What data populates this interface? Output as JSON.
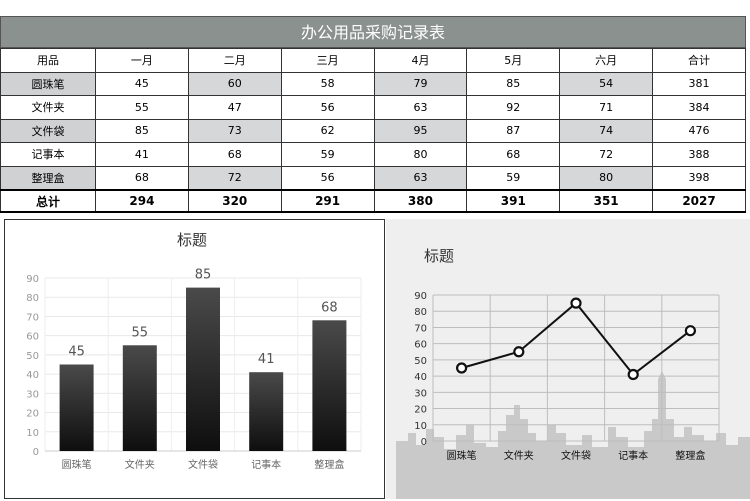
{
  "table": {
    "title": "办公用品采购记录表",
    "headers": [
      "用品",
      "一月",
      "二月",
      "三月",
      "4月",
      "5月",
      "六月",
      "合计"
    ],
    "rows": [
      {
        "name": "圆珠笔",
        "values": [
          "45",
          "60",
          "58",
          "79",
          "85",
          "54"
        ],
        "total": "381"
      },
      {
        "name": "文件夹",
        "values": [
          "55",
          "47",
          "56",
          "63",
          "92",
          "71"
        ],
        "total": "384"
      },
      {
        "name": "文件袋",
        "values": [
          "85",
          "73",
          "62",
          "95",
          "87",
          "74"
        ],
        "total": "476"
      },
      {
        "name": "记事本",
        "values": [
          "41",
          "68",
          "59",
          "80",
          "68",
          "72"
        ],
        "total": "388"
      },
      {
        "name": "整理盒",
        "values": [
          "68",
          "72",
          "56",
          "63",
          "59",
          "80"
        ],
        "total": "398"
      }
    ],
    "total_row": {
      "label": "总计",
      "values": [
        "294",
        "320",
        "291",
        "380",
        "391",
        "351"
      ],
      "total": "2027"
    }
  },
  "chart_data": [
    {
      "type": "bar",
      "title": "标题",
      "categories": [
        "圆珠笔",
        "文件夹",
        "文件袋",
        "记事本",
        "整理盒"
      ],
      "values": [
        45,
        55,
        85,
        41,
        68
      ],
      "ylim": [
        0,
        90
      ],
      "yticks": [
        0,
        10,
        20,
        30,
        40,
        50,
        60,
        70,
        80,
        90
      ],
      "grid": true,
      "data_labels": true
    },
    {
      "type": "line",
      "title": "标题",
      "categories": [
        "圆珠笔",
        "文件夹",
        "文件袋",
        "记事本",
        "整理盒"
      ],
      "values": [
        45,
        55,
        85,
        41,
        68
      ],
      "ylim": [
        0,
        90
      ],
      "yticks": [
        0,
        10,
        20,
        30,
        40,
        50,
        60,
        70,
        80,
        90
      ],
      "grid": true
    }
  ],
  "colors": {
    "header_bar": "#8a918e",
    "shaded_cell": "#d6d7d9",
    "bar": "#1e1e1e",
    "line": "#000000"
  }
}
